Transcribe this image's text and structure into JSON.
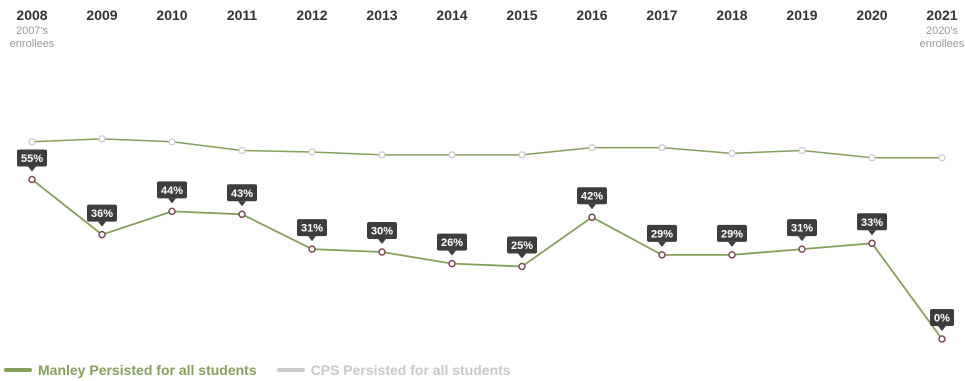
{
  "colors": {
    "manley": "#85a05b",
    "cps": "#c8c8c8",
    "cps_point_fill": "#ffffff",
    "manley_marker_stroke": "#7a4a55",
    "label_bg": "#3d3d3d"
  },
  "chart_data": {
    "type": "line",
    "x": [
      "2008",
      "2009",
      "2010",
      "2011",
      "2012",
      "2013",
      "2014",
      "2015",
      "2016",
      "2017",
      "2018",
      "2019",
      "2020",
      "2021"
    ],
    "x_annotations": {
      "first": [
        "2007's",
        "enrollees"
      ],
      "last": [
        "2020's",
        "enrollees"
      ]
    },
    "ylim": [
      0,
      100
    ],
    "grid": false,
    "legend_position": "bottom-left",
    "series": [
      {
        "name": "Manley Persisted for all students",
        "color": "#85a05b",
        "values": [
          55,
          36,
          44,
          43,
          31,
          30,
          26,
          25,
          42,
          29,
          29,
          31,
          33,
          0
        ],
        "labels": [
          "55%",
          "36%",
          "44%",
          "43%",
          "31%",
          "30%",
          "26%",
          "25%",
          "42%",
          "29%",
          "29%",
          "31%",
          "33%",
          "0%"
        ]
      },
      {
        "name": "CPS Persisted for all students",
        "color": "#c8c8c8",
        "values": [
          68,
          69,
          68,
          65,
          64.5,
          63.5,
          63.5,
          63.5,
          66,
          66,
          64,
          65,
          62.5,
          62.5
        ]
      }
    ]
  },
  "legend": {
    "manley_label": "Manley Persisted for all students",
    "cps_label": "CPS Persisted for all students"
  }
}
